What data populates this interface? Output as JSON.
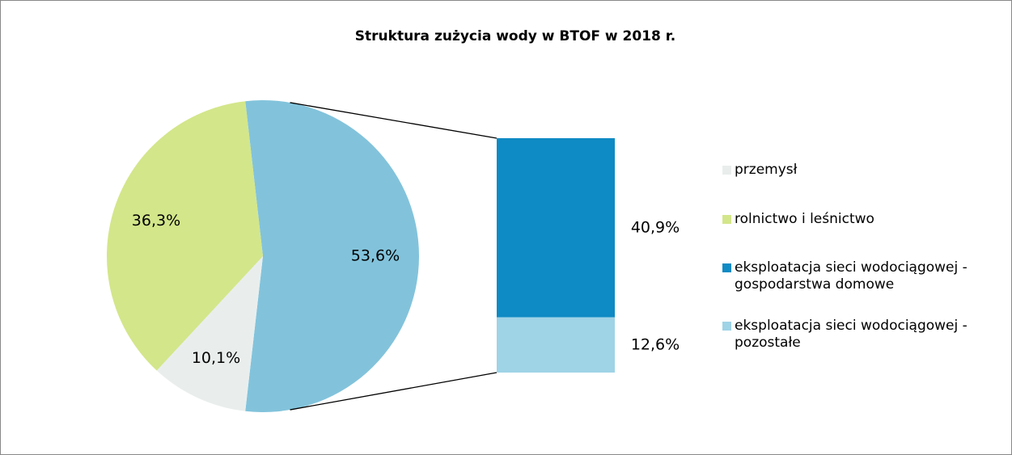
{
  "chart_data": {
    "type": "bar-of-pie",
    "title": "Struktura zużycia wody w BTOF w 2018 r.",
    "categories": [
      "przemysł",
      "rolnictwo i leśnictwo",
      "eksploatacja sieci wodociągowej - gospodarstwa domowe",
      "eksploatacja sieci wodociągowej - pozostałe"
    ],
    "values": [
      10.1,
      36.3,
      40.9,
      12.6
    ],
    "value_labels": [
      "10,1%",
      "36,3%",
      "40,9%",
      "12,6%"
    ],
    "colors": [
      "#e9eeed",
      "#d3e68a",
      "#0e8ac4",
      "#9fd3e6"
    ],
    "second_plot_count": 2,
    "other_value": 53.6,
    "other_value_label": "53,6%",
    "other_color": "#82c3db",
    "legend": "right"
  }
}
